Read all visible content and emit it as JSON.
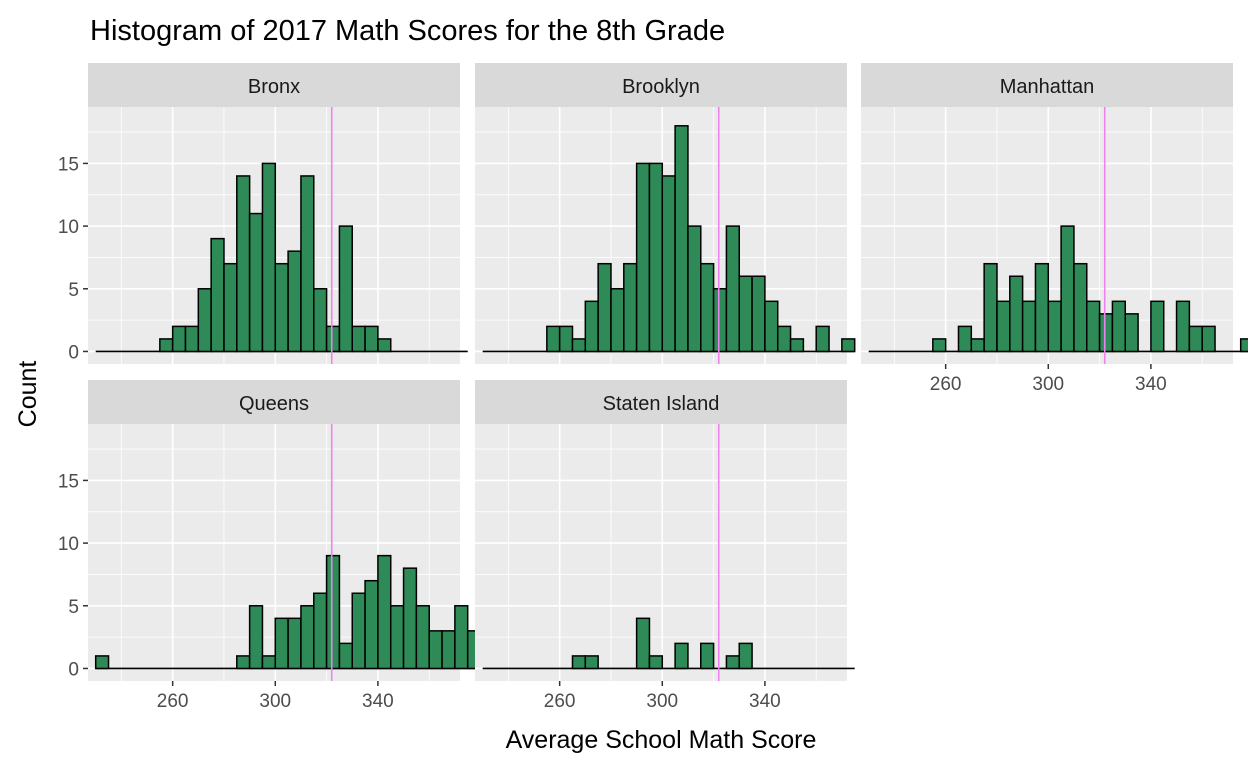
{
  "chart_data": {
    "type": "histogram",
    "title": "Histogram of 2017 Math Scores for the 8th Grade",
    "xlabel": "Average School Math Score",
    "ylabel": "Count",
    "xlim": [
      227,
      372
    ],
    "ylim": [
      -1,
      19.5
    ],
    "x_ticks": [
      260,
      300,
      340
    ],
    "y_ticks": [
      0,
      5,
      10,
      15
    ],
    "binwidth": 5,
    "bin_start": 230,
    "vline": {
      "x": 322,
      "color": "#EE82EE"
    },
    "bar_fill": "#2E8B57",
    "bar_stroke": "#000000",
    "panel_background": "#EBEBEB",
    "strip_background": "#D9D9D9",
    "grid": true,
    "facets": [
      {
        "name": "Bronx",
        "counts": [
          0,
          0,
          0,
          0,
          0,
          1,
          2,
          2,
          5,
          9,
          7,
          14,
          11,
          15,
          7,
          8,
          14,
          5,
          2,
          10,
          2,
          2,
          1,
          0,
          0,
          0,
          0,
          0,
          0
        ]
      },
      {
        "name": "Brooklyn",
        "counts": [
          0,
          0,
          0,
          0,
          0,
          2,
          2,
          1,
          4,
          7,
          5,
          7,
          15,
          15,
          14,
          18,
          10,
          7,
          5,
          10,
          6,
          6,
          4,
          2,
          1,
          0,
          2,
          0,
          1
        ]
      },
      {
        "name": "Manhattan",
        "counts": [
          0,
          0,
          0,
          0,
          0,
          1,
          0,
          2,
          1,
          7,
          4,
          6,
          4,
          7,
          4,
          10,
          7,
          4,
          3,
          4,
          3,
          0,
          4,
          0,
          4,
          2,
          2,
          0,
          0,
          1,
          0,
          0,
          0
        ]
      },
      {
        "name": "Queens",
        "counts": [
          1,
          0,
          0,
          0,
          0,
          0,
          0,
          0,
          0,
          0,
          0,
          1,
          5,
          1,
          4,
          4,
          5,
          6,
          9,
          2,
          6,
          7,
          9,
          5,
          8,
          5,
          3,
          3,
          5,
          3,
          1,
          0,
          0,
          0,
          0,
          0,
          0,
          0,
          0,
          0,
          0,
          0,
          0,
          0,
          0
        ]
      },
      {
        "name": "Staten Island",
        "counts": [
          0,
          0,
          0,
          0,
          0,
          0,
          0,
          1,
          1,
          0,
          0,
          0,
          4,
          1,
          0,
          2,
          0,
          2,
          0,
          1,
          2,
          0,
          0,
          0,
          0,
          0,
          0,
          0,
          0
        ]
      }
    ]
  }
}
